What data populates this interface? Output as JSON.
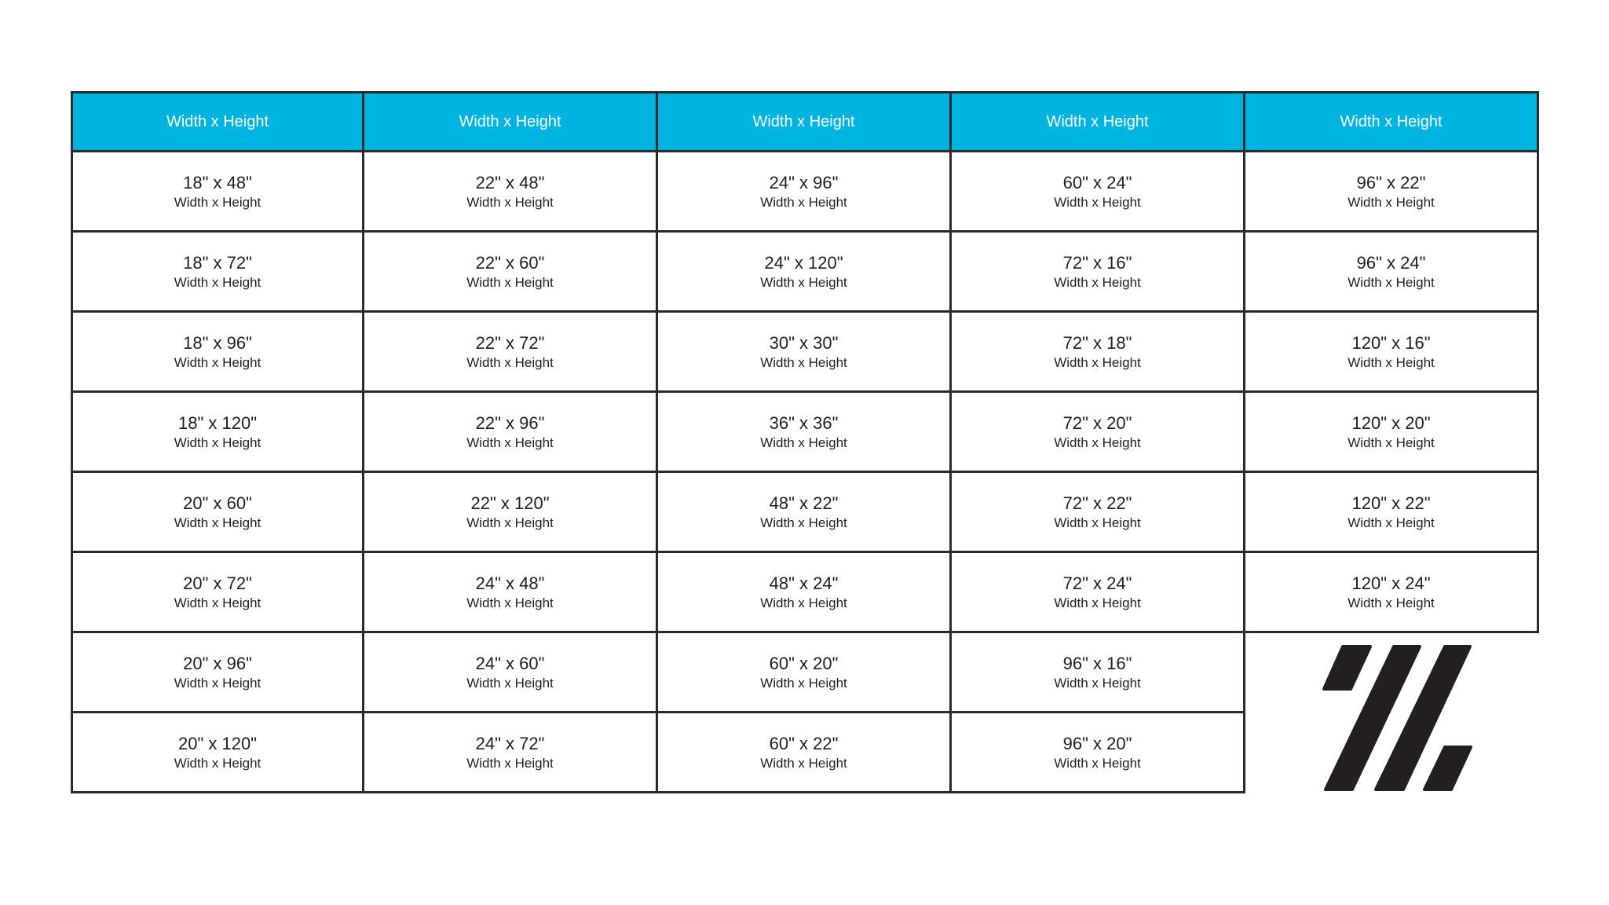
{
  "colors": {
    "header_bg": "#00b4e1",
    "border": "#2b2b2b",
    "text": "#231f20",
    "logo": "#231f20"
  },
  "header": [
    "Width x Height",
    "Width x Height",
    "Width x Height",
    "Width x Height",
    "Width x Height"
  ],
  "subtitle": "Width x Height",
  "columns": [
    [
      "18\" x 48\"",
      "18\" x 72\"",
      "18\" x 96\"",
      "18\" x 120\"",
      "20\" x 60\"",
      "20\" x 72\"",
      "20\" x 96\"",
      "20\" x 120\""
    ],
    [
      "22\" x 48\"",
      "22\" x 60\"",
      "22\" x 72\"",
      "22\" x 96\"",
      "22\" x 120\"",
      "24\" x 48\"",
      "24\" x 60\"",
      "24\" x 72\""
    ],
    [
      "24\" x 96\"",
      "24\" x 120\"",
      "30\" x 30\"",
      "36\" x 36\"",
      "48\" x 22\"",
      "48\" x 24\"",
      "60\" x 20\"",
      "60\" x 22\""
    ],
    [
      "60\" x 24\"",
      "72\" x 16\"",
      "72\" x 18\"",
      "72\" x 20\"",
      "72\" x 22\"",
      "72\" x 24\"",
      "96\" x 16\"",
      "96\" x 20\""
    ],
    [
      "96\" x 22\"",
      "96\" x 24\"",
      "120\" x 16\"",
      "120\" x 20\"",
      "120\" x 22\"",
      "120\" x 24\""
    ]
  ],
  "logo": {
    "icon": "slash-stripes-logo"
  }
}
